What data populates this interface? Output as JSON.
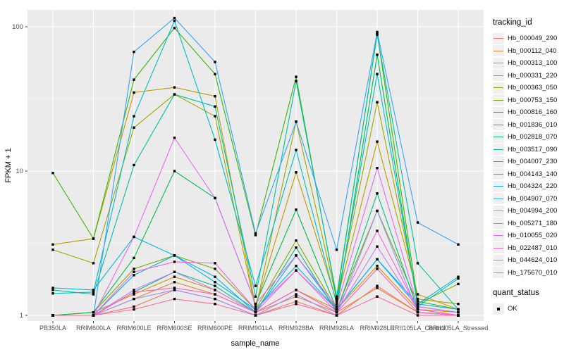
{
  "figure": {
    "x_axis": {
      "title": "sample_name"
    },
    "y_axis": {
      "title": "FPKM + 1"
    },
    "legend": {
      "title": "tracking_id"
    },
    "quant_legend": {
      "title": "quant_status",
      "items": [
        {
          "label": "OK",
          "marker": "black-square"
        }
      ]
    }
  },
  "chart_data": {
    "type": "line",
    "title": "",
    "xlabel": "sample_name",
    "ylabel": "FPKM + 1",
    "yscale": "log10",
    "yticks": [
      1,
      10,
      100
    ],
    "ytick_labels": [
      "1",
      "10",
      "100"
    ],
    "ylim": [
      0.91,
      131
    ],
    "grid": true,
    "legend_position": "right",
    "marker": "black-square",
    "marker_legend": {
      "title": "quant_status",
      "label": "OK"
    },
    "panel_bg": "#EBEBEB",
    "grid_major_color": "#FFFFFF",
    "grid_minor_color": "#FFFFFF",
    "tick_color": "#333333",
    "tick_text_color": "#4D4D4D",
    "x": [
      "PB350LA",
      "RRIM600LA",
      "RRIM600LE",
      "RRIM600SE",
      "RRIM600PE",
      "RRIM901LA",
      "RRIM928BA",
      "RRIM928LA",
      "RRIM928LE",
      "RRII105LA_Control",
      "RRII105LA_Stressed"
    ],
    "series": [
      {
        "name": "Hb_000049_290",
        "color": "#F8766D",
        "values": [
          1.0,
          1.0,
          1.15,
          1.5,
          1.3,
          1.0,
          1.25,
          1.0,
          1.6,
          1.05,
          1.0
        ]
      },
      {
        "name": "Hb_000112_040",
        "color": "#EA8331",
        "values": [
          1.0,
          1.0,
          1.3,
          1.7,
          1.4,
          1.05,
          1.35,
          1.05,
          1.55,
          1.05,
          1.0
        ]
      },
      {
        "name": "Hb_000313_100",
        "color": "#D89200",
        "values": [
          1.0,
          1.05,
          1.4,
          1.85,
          1.5,
          1.05,
          1.5,
          1.1,
          2.2,
          1.1,
          1.05
        ]
      },
      {
        "name": "Hb_000331_220",
        "color": "#C09B00",
        "values": [
          3.1,
          3.4,
          35,
          38,
          33,
          1.15,
          9.8,
          1.25,
          16,
          1.4,
          1.1
        ]
      },
      {
        "name": "Hb_000363_050",
        "color": "#A3A500",
        "values": [
          2.85,
          2.3,
          20,
          34,
          24,
          1.1,
          22,
          1.3,
          30,
          1.3,
          1.2
        ]
      },
      {
        "name": "Hb_000753_150",
        "color": "#7CAE00",
        "values": [
          1.0,
          1.05,
          2.1,
          2.6,
          2.1,
          1.1,
          3.3,
          1.1,
          5.3,
          1.2,
          1.65
        ]
      },
      {
        "name": "Hb_000816_160",
        "color": "#39B600",
        "values": [
          9.7,
          3.4,
          43,
          98,
          47,
          3.6,
          45,
          1.3,
          90,
          1.25,
          1.1
        ]
      },
      {
        "name": "Hb_001836_010",
        "color": "#00BB4E",
        "values": [
          1.0,
          1.05,
          2.5,
          10,
          6.5,
          1.2,
          5.4,
          1.1,
          64,
          1.15,
          1.05
        ]
      },
      {
        "name": "Hb_002818_070",
        "color": "#00BF7D",
        "values": [
          1.0,
          1.0,
          1.45,
          2.0,
          1.6,
          1.05,
          2.95,
          1.05,
          7.0,
          1.1,
          1.0
        ]
      },
      {
        "name": "Hb_003517_090",
        "color": "#00C1A3",
        "values": [
          1.5,
          1.4,
          11,
          34,
          28,
          1.35,
          42,
          1.35,
          88,
          2.3,
          1.1
        ]
      },
      {
        "name": "Hb_004007_230",
        "color": "#00BFC4",
        "values": [
          1.42,
          1.45,
          24,
          110,
          16.5,
          1.6,
          14,
          1.2,
          47,
          1.2,
          1.85
        ]
      },
      {
        "name": "Hb_004143_140",
        "color": "#00BAE0",
        "values": [
          1.55,
          1.5,
          3.5,
          2.6,
          1.7,
          1.1,
          2.2,
          1.1,
          2.45,
          1.15,
          1.8
        ]
      },
      {
        "name": "Hb_004324_220",
        "color": "#00B0F6",
        "values": [
          1.0,
          1.0,
          1.9,
          2.6,
          1.85,
          1.05,
          2.6,
          1.1,
          2.45,
          1.2,
          1.1
        ]
      },
      {
        "name": "Hb_004907_070",
        "color": "#35A2FF",
        "values": [
          1.0,
          1.0,
          67,
          115,
          57,
          3.7,
          22,
          2.85,
          92,
          4.4,
          3.1
        ]
      },
      {
        "name": "Hb_004994_200",
        "color": "#9590FF",
        "values": [
          1.0,
          1.0,
          1.3,
          1.5,
          1.3,
          1.0,
          1.4,
          1.0,
          5.3,
          1.05,
          1.0
        ]
      },
      {
        "name": "Hb_005271_180",
        "color": "#C77CFF",
        "values": [
          1.0,
          1.0,
          1.5,
          2.0,
          1.5,
          1.05,
          2.05,
          1.05,
          3.0,
          1.1,
          1.0
        ]
      },
      {
        "name": "Hb_010055_020",
        "color": "#E76BF3",
        "values": [
          1.0,
          1.0,
          3.5,
          17,
          6.5,
          1.2,
          2.6,
          1.15,
          10.5,
          1.15,
          1.05
        ]
      },
      {
        "name": "Hb_022487_010",
        "color": "#FA62DB",
        "values": [
          1.0,
          1.0,
          2.0,
          2.35,
          2.3,
          1.1,
          2.05,
          1.1,
          3.85,
          1.1,
          1.0
        ]
      },
      {
        "name": "Hb_044624_010",
        "color": "#FF62BC",
        "values": [
          1.0,
          1.0,
          1.45,
          1.55,
          1.4,
          1.05,
          1.5,
          1.05,
          2.1,
          1.05,
          1.0
        ]
      },
      {
        "name": "Hb_175670_010",
        "color": "#FF6A98",
        "values": [
          1.0,
          1.0,
          1.1,
          1.3,
          1.2,
          1.0,
          1.2,
          1.0,
          1.35,
          1.0,
          1.0
        ]
      }
    ]
  }
}
